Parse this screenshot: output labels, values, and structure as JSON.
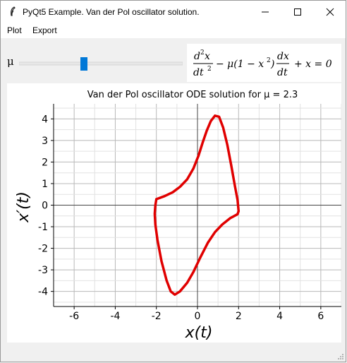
{
  "window": {
    "title": "PyQt5 Example. Van der Pol oscillator solution."
  },
  "menu": {
    "items": [
      {
        "label": "Plot"
      },
      {
        "label": "Export"
      }
    ]
  },
  "controls": {
    "slider_label": "μ",
    "slider_value": 2.3,
    "formula": {
      "d2": "d",
      "sq": "2",
      "x": "x",
      "dt": "dt",
      "middle": "− μ(1 − x",
      "middle_end": ")",
      "dx": "dx",
      "tail": "+ x = 0"
    }
  },
  "chart_data": {
    "type": "line",
    "title": "Van der Pol oscillator ODE solution for μ = 2.3",
    "xlabel": "x(t)",
    "ylabel": "x′(t)",
    "xlim": [
      -7,
      7
    ],
    "ylim": [
      -4.7,
      4.7
    ],
    "xticks": [
      -6,
      -4,
      -2,
      0,
      2,
      4,
      6
    ],
    "yticks": [
      -4,
      -3,
      -2,
      -1,
      0,
      1,
      2,
      3,
      4
    ],
    "grid": true,
    "colors": {
      "series": "#e00000"
    },
    "series": [
      {
        "x": [
          -2.0,
          -1.6,
          -1.2,
          -0.85,
          -0.5,
          -0.2,
          0.05,
          0.25,
          0.45,
          0.65,
          0.85,
          1.05,
          1.25,
          1.45,
          1.65,
          1.82,
          1.95,
          2.0,
          1.95,
          1.6,
          1.2,
          0.85,
          0.5,
          0.15,
          -0.2,
          -0.5,
          -0.85,
          -1.1,
          -1.3,
          -1.5,
          -1.75,
          -1.95,
          -2.05,
          -2.08,
          -2.05,
          -2.0
        ],
        "y": [
          0.28,
          0.42,
          0.6,
          0.85,
          1.2,
          1.7,
          2.3,
          2.9,
          3.45,
          3.9,
          4.15,
          4.1,
          3.6,
          2.8,
          1.8,
          0.9,
          0.25,
          -0.28,
          -0.42,
          -0.6,
          -0.9,
          -1.25,
          -1.75,
          -2.4,
          -3.1,
          -3.6,
          -4.0,
          -4.15,
          -4.0,
          -3.5,
          -2.6,
          -1.6,
          -0.9,
          -0.4,
          0.0,
          0.28
        ]
      }
    ]
  }
}
